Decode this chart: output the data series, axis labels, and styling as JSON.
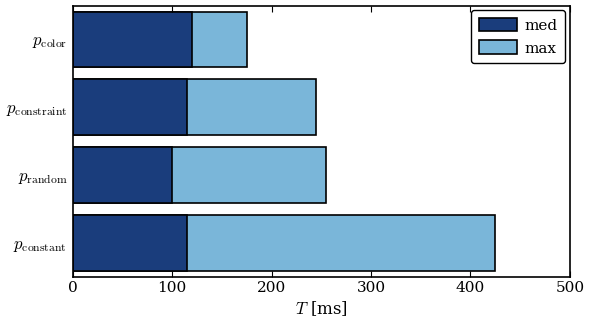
{
  "med_values": [
    115,
    100,
    115,
    120
  ],
  "max_values": [
    425,
    255,
    245,
    175
  ],
  "color_med": "#1a3d7c",
  "color_max": "#7ab6d9",
  "xlim": [
    0,
    500
  ],
  "xticks": [
    0,
    100,
    200,
    300,
    400,
    500
  ],
  "xlabel": "$T$ [ms]",
  "legend_labels": [
    "med",
    "max"
  ],
  "bar_height": 0.82,
  "edgecolor": "#000000",
  "linewidth": 1.2
}
